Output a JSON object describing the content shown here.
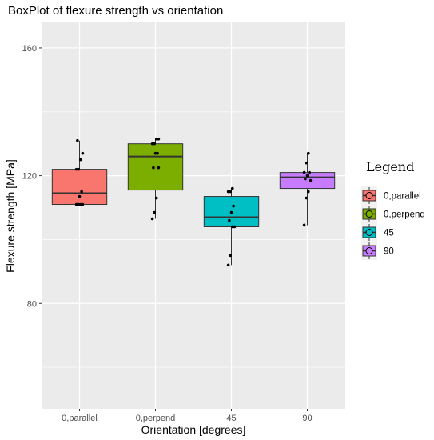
{
  "chart_data": {
    "type": "boxplot",
    "title": "BoxPlot of flexure strength vs orientation",
    "xlabel": "Orientation [degrees]",
    "ylabel": "Flexure strength [MPa]",
    "ylim": [
      47,
      168
    ],
    "yticks": [
      80,
      120,
      160
    ],
    "categories": [
      "0,parallel",
      "0,perpend",
      "45",
      "90"
    ],
    "colors": [
      "#F8766D",
      "#7CAE00",
      "#00BFC4",
      "#C77CFF"
    ],
    "grid": true,
    "legend": {
      "title": "Legend",
      "position": "right",
      "entries": [
        "0,parallel",
        "0,perpend",
        "45",
        "90"
      ]
    },
    "boxes": [
      {
        "category": "0,parallel",
        "whisker_low": 111,
        "q1": 111,
        "median": 114.5,
        "q3": 122,
        "whisker_high": 131,
        "points": [
          111,
          111,
          111,
          111,
          111,
          113.5,
          115,
          122,
          122,
          125,
          127,
          131
        ]
      },
      {
        "category": "0,perpend",
        "whisker_low": 106.5,
        "q1": 115.5,
        "median": 126,
        "q3": 130,
        "whisker_high": 131.5,
        "points": [
          106.5,
          108.5,
          113,
          122.5,
          122.5,
          127,
          127,
          130,
          130,
          131.5,
          131.5
        ]
      },
      {
        "category": "45",
        "whisker_low": 92,
        "q1": 104,
        "median": 107,
        "q3": 113.5,
        "whisker_high": 116,
        "points": [
          92,
          95,
          104,
          104,
          106,
          108.5,
          110.5,
          115,
          115,
          116
        ]
      },
      {
        "category": "90",
        "whisker_low": 104.5,
        "q1": 116,
        "median": 119.5,
        "q3": 121,
        "whisker_high": 127,
        "points": [
          104.5,
          113,
          115,
          118.5,
          119,
          120,
          121,
          121,
          124,
          127
        ]
      }
    ]
  }
}
